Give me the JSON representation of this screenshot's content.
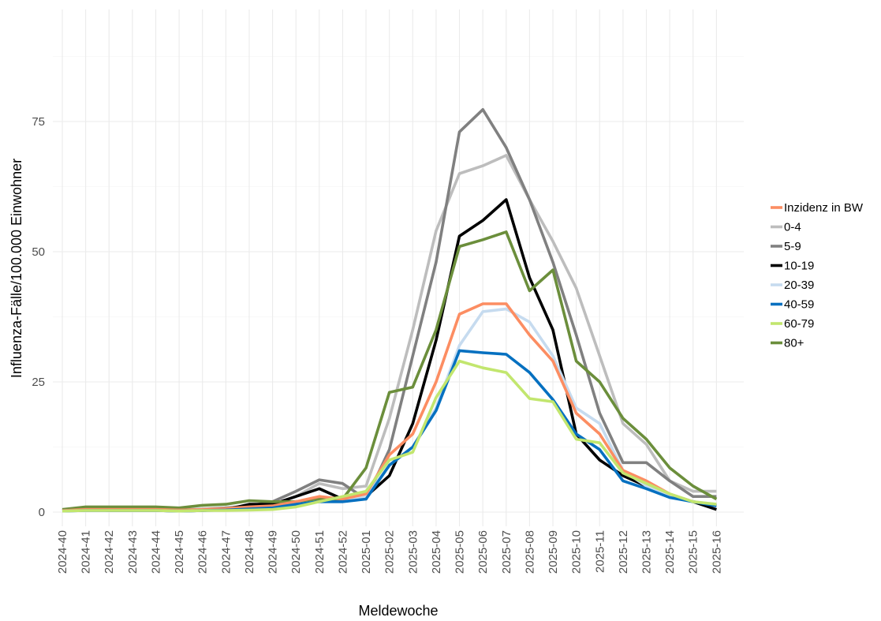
{
  "chart_data": {
    "type": "line",
    "title": "",
    "xlabel": "Meldewoche",
    "ylabel": "Influenza-Fälle/100.000 Einwohner",
    "ylim": [
      -4,
      97
    ],
    "yticks": [
      0,
      25,
      50,
      75
    ],
    "grid": true,
    "legend_position": "right",
    "categories": [
      "2024-40",
      "2024-41",
      "2024-42",
      "2024-43",
      "2024-44",
      "2024-45",
      "2024-46",
      "2024-47",
      "2024-48",
      "2024-49",
      "2024-50",
      "2024-51",
      "2024-52",
      "2025-01",
      "2025-02",
      "2025-03",
      "2025-04",
      "2025-05",
      "2025-06",
      "2025-07",
      "2025-08",
      "2025-09",
      "2025-10",
      "2025-11",
      "2025-12",
      "2025-13",
      "2025-14",
      "2025-15",
      "2025-16"
    ],
    "series": [
      {
        "name": "0-4",
        "color": "#bdbdbd",
        "values": [
          0.3,
          0.5,
          0.5,
          0.5,
          0.5,
          0.4,
          0.6,
          0.8,
          1,
          1.5,
          3,
          5.5,
          4.5,
          5,
          18,
          35,
          54,
          65,
          66.5,
          68.5,
          60,
          52,
          43,
          30,
          17,
          13,
          6,
          4,
          4
        ]
      },
      {
        "name": "5-9",
        "color": "#808080",
        "values": [
          0.3,
          0.5,
          0.5,
          0.5,
          0.5,
          0.4,
          0.5,
          0.8,
          1.2,
          2,
          4,
          6.2,
          5.5,
          2.5,
          12,
          30,
          48,
          73,
          77.3,
          70,
          60,
          48,
          34,
          19,
          9.5,
          9.5,
          6,
          3,
          3
        ]
      },
      {
        "name": "10-19",
        "color": "#000000",
        "values": [
          0.3,
          0.5,
          0.3,
          0.3,
          0.3,
          0.2,
          0.3,
          0.5,
          1.5,
          1.5,
          3,
          4.5,
          2.5,
          3,
          7,
          17,
          33,
          53,
          56,
          60,
          45,
          35,
          15,
          10,
          7,
          5,
          3,
          2,
          0.5
        ]
      },
      {
        "name": "80+",
        "color": "#6b8e3b",
        "values": [
          0.5,
          1,
          1,
          1,
          1,
          0.8,
          1.3,
          1.5,
          2.2,
          2,
          2,
          2.5,
          2.5,
          8.5,
          23,
          24,
          35,
          51,
          52.3,
          53.8,
          42.5,
          46.5,
          29,
          25,
          18,
          14,
          8.5,
          5,
          2.5
        ]
      },
      {
        "name": "20-39",
        "color": "#c6dbef",
        "values": [
          0.2,
          0.3,
          0.3,
          0.3,
          0.3,
          0.2,
          0.3,
          0.4,
          0.5,
          0.8,
          1.5,
          2,
          2,
          3,
          9,
          12.5,
          20,
          32,
          38.5,
          39,
          36.5,
          30,
          20,
          17,
          8,
          5,
          3,
          2,
          1.5
        ]
      },
      {
        "name": "Inzidenz in BW",
        "color": "#fc8d62",
        "values": [
          0.3,
          0.5,
          0.5,
          0.5,
          0.5,
          0.4,
          0.5,
          0.7,
          1,
          1.2,
          2,
          3,
          2.5,
          3.5,
          11,
          15,
          25,
          38,
          40,
          40,
          34,
          29,
          19,
          15,
          8,
          6,
          3.5,
          2,
          1.3
        ]
      },
      {
        "name": "40-59",
        "color": "#0570c0",
        "values": [
          0.2,
          0.3,
          0.3,
          0.3,
          0.3,
          0.2,
          0.3,
          0.4,
          0.6,
          0.8,
          1.5,
          2,
          2,
          2.5,
          9,
          12.5,
          19.5,
          31,
          30.6,
          30.3,
          26.8,
          21.6,
          15,
          12,
          6,
          4.5,
          2.8,
          2,
          1.2
        ]
      },
      {
        "name": "60-79",
        "color": "#c2e66e",
        "values": [
          0.2,
          0.3,
          0.3,
          0.3,
          0.3,
          0.2,
          0.3,
          0.3,
          0.4,
          0.5,
          1,
          2,
          3,
          4,
          10,
          11.5,
          22,
          29,
          27.7,
          26.8,
          21.8,
          21.2,
          14,
          13.3,
          7.5,
          5.5,
          3.5,
          2,
          1.5
        ]
      }
    ],
    "legend": [
      {
        "name": "Inzidenz in BW",
        "color": "#fc8d62"
      },
      {
        "name": "0-4",
        "color": "#bdbdbd"
      },
      {
        "name": "5-9",
        "color": "#808080"
      },
      {
        "name": "10-19",
        "color": "#000000"
      },
      {
        "name": "20-39",
        "color": "#c6dbef"
      },
      {
        "name": "40-59",
        "color": "#0570c0"
      },
      {
        "name": "60-79",
        "color": "#c2e66e"
      },
      {
        "name": "80+",
        "color": "#6b8e3b"
      }
    ]
  }
}
